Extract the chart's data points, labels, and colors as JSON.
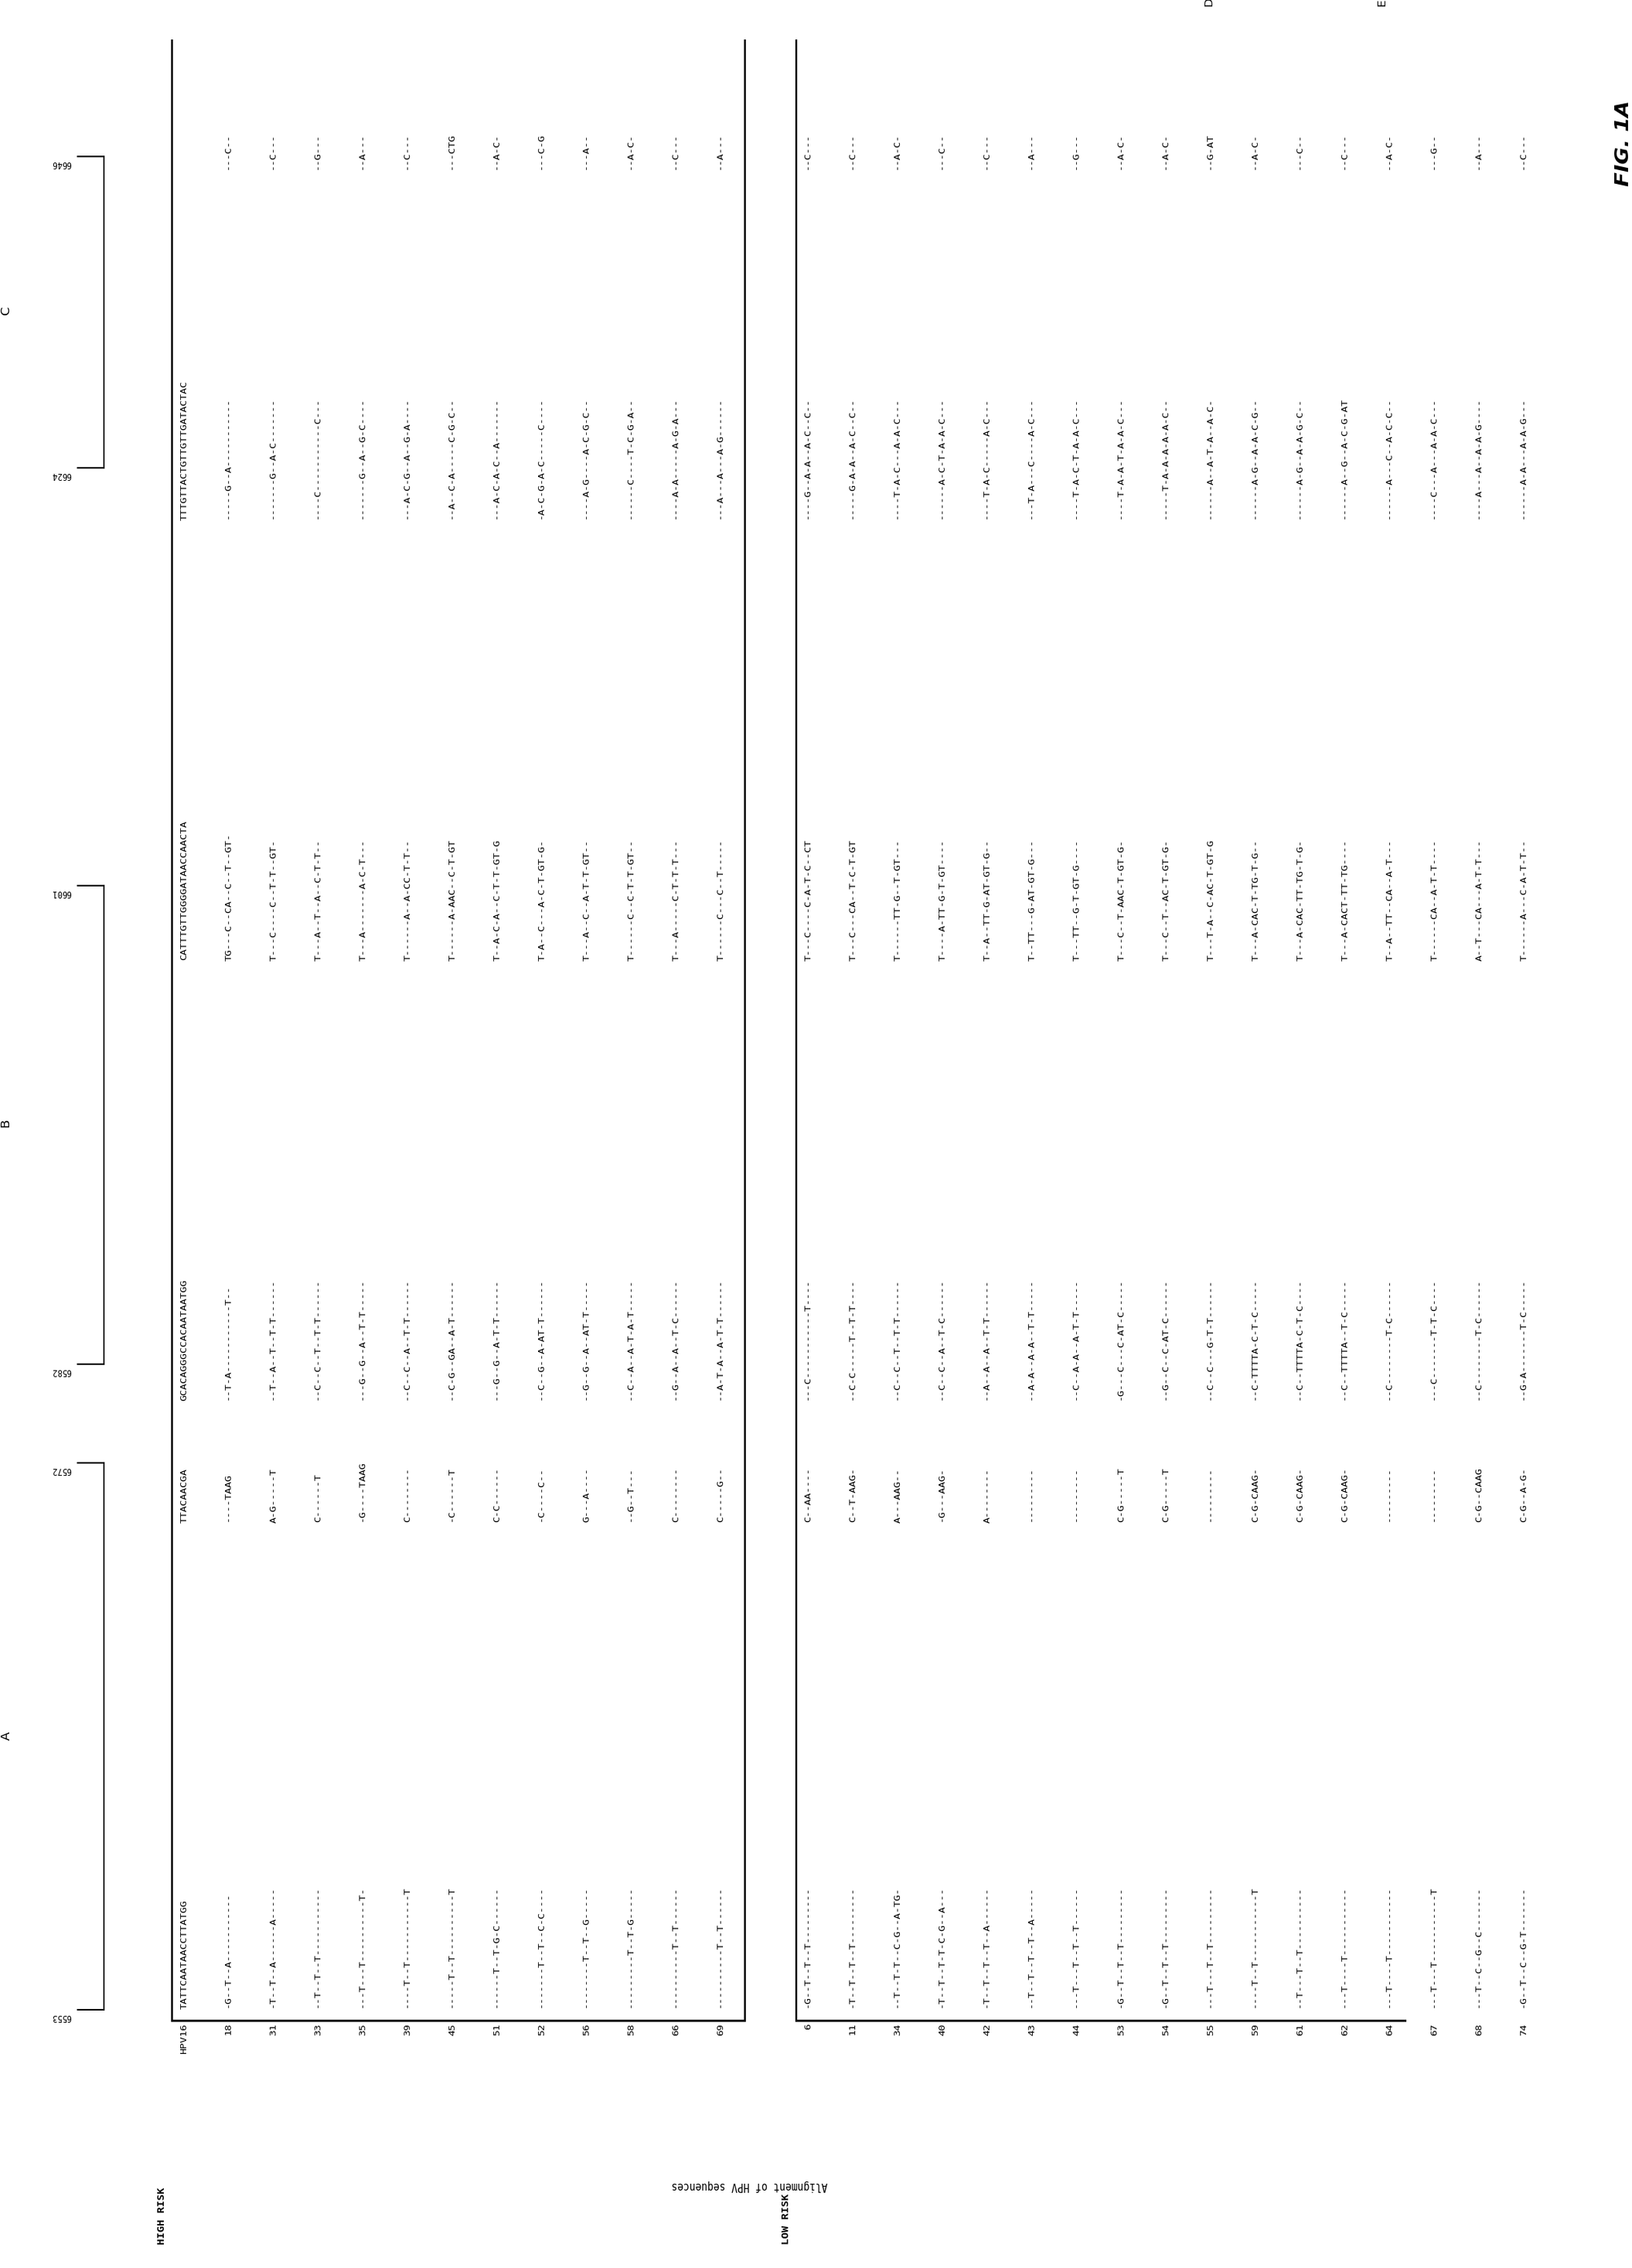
{
  "title": "Alignment of HPV sequences",
  "figure_label": "FIG. 1A",
  "high_risk_label": "HIGH RISK",
  "low_risk_label": "LOW RISK",
  "region_A_label": "A",
  "region_B_label": "B",
  "region_C_label": "C",
  "region_D_label": "D",
  "region_E_label": "E",
  "pos_markers": [
    "6553",
    "6572",
    "6582",
    "6601",
    "6624",
    "6646"
  ],
  "high_risk_rows": [
    [
      "HPV16",
      "TATTCAATAACCTTATGG",
      "TTACAACGA",
      "GCACAGGGCCACAATAATGG",
      "CATTTGTTGGGGATAACCAACTA",
      "TTTGTTACTGTTGTTGATACTAC",
      ""
    ],
    [
      "18",
      "-G--T--A-----------",
      "----TAAG",
      "--T-A-----------T--",
      "TG---C--CA--C--T--GT-",
      "-----G--A-----------",
      "---C--"
    ],
    [
      "31",
      "-T--T--A------A-----",
      "A-G-----T",
      "--T--A--T--T-T------",
      "T---C----C--T-T--GT-",
      "-------G--A-C-------",
      "--C---"
    ],
    [
      "33",
      "--T--T--T-----------",
      "C------T",
      "--C--C--T--T-T------",
      "T---A--T--A--C-T-T--",
      "----C-----------C---",
      "--G---"
    ],
    [
      "35",
      "---T---T----------T-",
      "-G----TAAG",
      "---G--G--A--T-T-----",
      "T---A-------A-C-T---",
      "-------G--A--G-C----",
      "--A---"
    ],
    [
      "39",
      "----T--T-----------T",
      "C--------",
      "--C--C--A--T-T------",
      "T------A--A-CC-T-T--",
      "---A-C-G--A--G-A----",
      "--C---"
    ],
    [
      "45",
      "-----T--T----------T",
      "-C------T",
      "--C-G--GA--A-T------",
      "T------A-AAC--C-T-GT",
      "--A--C-A-----C-G-C--",
      "---CTG"
    ],
    [
      "51",
      "------T--T-G-C------",
      "C-C------",
      "---G--G--A-T-T------",
      "T--A-C-A--C-T-T-GT-G",
      "---A-C-A-C--A-------",
      "--A-C-"
    ],
    [
      "52",
      "-------T--T--C-C----",
      "-C----C--",
      "--C--G--A-AT-T------",
      "T-A--C---A-C-T-GT-G-",
      "-A-C-G-A-C-----C----",
      "---C-G"
    ],
    [
      "56",
      "--------T--T--G-----",
      "G---A----",
      "--G--G--A--AT-T-----",
      "T---A--C--A-T-T-GT--",
      "----A-G----A-C-G-C--",
      "---A--"
    ],
    [
      "58",
      "---------T--T-G-----",
      "--G--T---",
      "--C--A--A-T-A-T-----",
      "T------C--C-T-T-GT--",
      "------C----T-C-G-A--",
      "--A-C-"
    ],
    [
      "66",
      "----------T--T------",
      "C--------",
      "--G--A--A--T-C------",
      "T---A-----C-T-T-T---",
      "----A-A-----A-G-A---",
      "--C---"
    ],
    [
      "69",
      "----------T--T------",
      "C-----G--",
      "--A-T-A--A-T-T------",
      "T------C---C--T-----",
      "---A---A---A-G------",
      "--A---"
    ]
  ],
  "low_risk_rows": [
    [
      "6",
      "-G--T--T--T---------",
      "C--AA----",
      "---C-----------T----",
      "T---C----C-A-T-C--CT",
      "----G--A-A--A-C--C--",
      "--C---"
    ],
    [
      "11",
      "-T--T--T--T---------",
      "C--T-AAG-",
      "--C-C-----T--T-T----",
      "T---C---CA--T-C-T-GT",
      "-----G-A-A--A-C--C--",
      "--C---"
    ],
    [
      "34",
      "--T--T-T--C-G--A-TG-",
      "A---AAG--",
      "--C--C--T--T-T------",
      "T------TT-G--T-GT---",
      "----T-A-C---A-A-C---",
      "--A-C-"
    ],
    [
      "40",
      "-T--T--T-T-C-G--A---",
      "-G---AAG-",
      "--C--C--A--T-C------",
      "T----A-TT-G-T-GT----",
      "------A-C-T-A-A-C---",
      "---C--"
    ],
    [
      "42",
      "-T--T--T--T--A------",
      "A--------",
      "--A--A--A--T-T------",
      "T--A--TT-G-AT-GT-G--",
      "----T-A-C-----A-C---",
      "--C---"
    ],
    [
      "43",
      "--T--T--T--T--A-----",
      "---------",
      "--A-A--A-A--T-T-----",
      "T--TT---G-AT-GT-G---",
      "---T-A---C----A-C---",
      "--A---"
    ],
    [
      "44",
      "---T---T--T--T------",
      "---------",
      "--C--A-A--A-T-T-----",
      "T---TT--G-T-GT-G----",
      "----T-A-C-T-A-A-C---",
      "--G---"
    ],
    [
      "53",
      "-G--T--T--T---------",
      "C-G-----T",
      "-G---C---C-AT-C-----",
      "T---C--T-AAC-T-GT-G-",
      "----T-A-A-T-A-A-C---",
      "--A-C-"
    ],
    [
      "54",
      "-G--T--T--T---------",
      "C-G-----T",
      "--G--C--C-AT-C------",
      "T---C--T--AC-T-GT-G-",
      "-----T-A-A-A-A-A-C--",
      "--A-C-"
    ],
    [
      "55",
      "---T---T--T---------",
      "---------",
      "--C--C---G-T-T------",
      "T---T-A--C-AC-T-GT-G",
      "------A--A-T-A--A-C-",
      "--G-AT"
    ],
    [
      "59",
      "----T--T-----------T",
      "C-G-CAAG-",
      "--C-TTTTA-C-T-C-----",
      "T---A-CAC-T-TG-T-G--",
      "------A-G--A-A-C-G--",
      "--A-C-"
    ],
    [
      "61",
      "--T---T--T----------",
      "C-G-CAAG-",
      "--C--TTTTA-C-T-C----",
      "T---A-CAC-TT-TG-T-G-",
      "------A-G--A-A-G-C--",
      "---C--"
    ],
    [
      "62",
      "---T----T-----------",
      "C-G-CAAG-",
      "--C--TTTTA--T-C-----",
      "T---A-CACT-TT-TG----",
      "------A--G--A-C-G-AT",
      "--C---"
    ],
    [
      "64",
      "---T----T-----------",
      "---------",
      "--C--------T-C------",
      "T--A--TT--CA--A-T---",
      "------A---C--A-C-C--",
      "--A-C-"
    ],
    [
      "67",
      "---T---T-----------T",
      "---------",
      "---C-------T-T-C----",
      "T------CA--A-T-T----",
      "----C---A---A-A-C---",
      "---G--"
    ],
    [
      "68",
      "---T--C--G--C-------",
      "C-G--CAAG",
      "--C--------T-C------",
      "A--T---CA---A-T-T---",
      "----A---A--A-A-G----",
      "--A---"
    ],
    [
      "74",
      "-G--T--C--G-T-------",
      "C-G--A-G-",
      "--G-A-------T-C-----",
      "T------A---C-A-T-T--",
      "------A-A---A-A-G---",
      "--C---"
    ]
  ]
}
